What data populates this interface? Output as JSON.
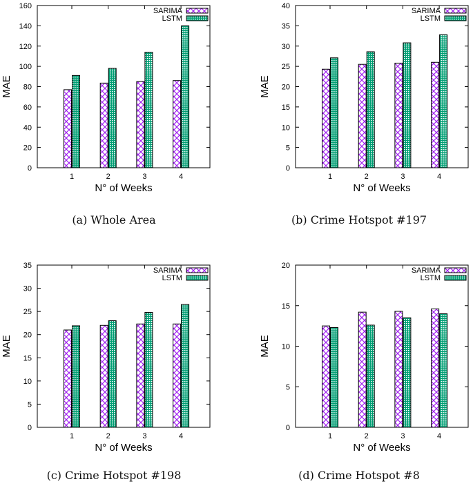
{
  "colors": {
    "sarima": "#a020f0",
    "lstm": "#009e73"
  },
  "chart_data": [
    {
      "type": "bar",
      "caption": "(a) Whole Area",
      "xlabel": "N° of Weeks",
      "ylabel": "MAE",
      "categories": [
        "1",
        "2",
        "3",
        "4"
      ],
      "ylim": [
        0,
        160
      ],
      "yticks": [
        0,
        20,
        40,
        60,
        80,
        100,
        120,
        140,
        160
      ],
      "series": [
        {
          "name": "SARIMA",
          "values": [
            77,
            83.5,
            85,
            86
          ]
        },
        {
          "name": "LSTM",
          "values": [
            91,
            98,
            114,
            140
          ]
        }
      ],
      "legend": "top-right"
    },
    {
      "type": "bar",
      "caption": "(b) Crime Hotspot #197",
      "xlabel": "N° of Weeks",
      "ylabel": "MAE",
      "categories": [
        "1",
        "2",
        "3",
        "4"
      ],
      "ylim": [
        0,
        40
      ],
      "yticks": [
        0,
        5,
        10,
        15,
        20,
        25,
        30,
        35,
        40
      ],
      "series": [
        {
          "name": "SARIMA",
          "values": [
            24.3,
            25.5,
            25.8,
            26
          ]
        },
        {
          "name": "LSTM",
          "values": [
            27.1,
            28.6,
            30.8,
            32.8
          ]
        }
      ],
      "legend": "top-right"
    },
    {
      "type": "bar",
      "caption": "(c) Crime Hotspot #198",
      "xlabel": "N° of Weeks",
      "ylabel": "MAE",
      "categories": [
        "1",
        "2",
        "3",
        "4"
      ],
      "ylim": [
        0,
        35
      ],
      "yticks": [
        0,
        5,
        10,
        15,
        20,
        25,
        30,
        35
      ],
      "series": [
        {
          "name": "SARIMA",
          "values": [
            21,
            22,
            22.3,
            22.3
          ]
        },
        {
          "name": "LSTM",
          "values": [
            21.9,
            23,
            24.8,
            26.5
          ]
        }
      ],
      "legend": "top-right"
    },
    {
      "type": "bar",
      "caption": "(d) Crime Hotspot #8",
      "xlabel": "N° of Weeks",
      "ylabel": "MAE",
      "categories": [
        "1",
        "2",
        "3",
        "4"
      ],
      "ylim": [
        0,
        20
      ],
      "yticks": [
        0,
        5,
        10,
        15,
        20
      ],
      "series": [
        {
          "name": "SARIMA",
          "values": [
            12.5,
            14.2,
            14.3,
            14.6
          ]
        },
        {
          "name": "LSTM",
          "values": [
            12.3,
            12.6,
            13.5,
            14.0
          ]
        }
      ],
      "legend": "top-right"
    }
  ]
}
